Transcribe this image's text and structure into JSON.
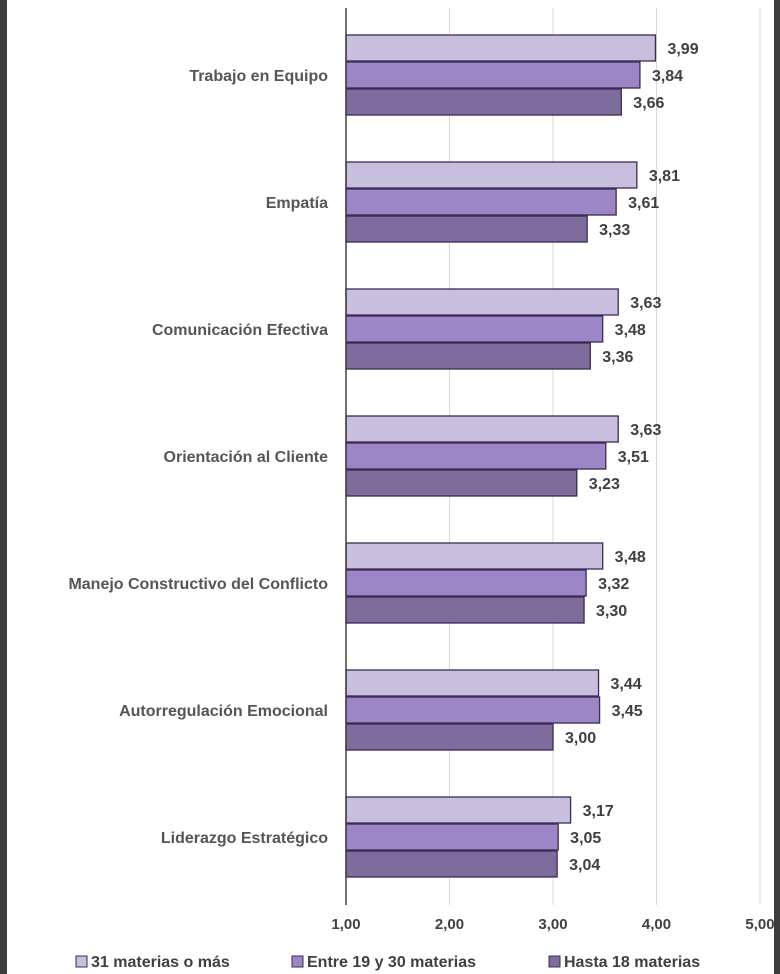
{
  "chart_data": {
    "type": "bar",
    "orientation": "horizontal",
    "categories": [
      "Trabajo en Equipo",
      "Empatía",
      "Comunicación Efectiva",
      "Orientación al Cliente",
      "Manejo Constructivo del Conflicto",
      "Autorregulación Emocional",
      "Liderazgo Estratégico"
    ],
    "series": [
      {
        "name": "31 materias o más",
        "color": "#c8bedd",
        "values": [
          3.99,
          3.81,
          3.63,
          3.63,
          3.48,
          3.44,
          3.17
        ],
        "labels": [
          "3,99",
          "3,81",
          "3,63",
          "3,63",
          "3,48",
          "3,44",
          "3,17"
        ]
      },
      {
        "name": "Entre 19 y 30 materias",
        "color": "#9d86c5",
        "values": [
          3.84,
          3.61,
          3.48,
          3.51,
          3.32,
          3.45,
          3.05
        ],
        "labels": [
          "3,84",
          "3,61",
          "3,48",
          "3,51",
          "3,32",
          "3,45",
          "3,05"
        ]
      },
      {
        "name": "Hasta 18 materias",
        "color": "#7e6c9d",
        "values": [
          3.66,
          3.33,
          3.36,
          3.23,
          3.3,
          3.0,
          3.04
        ],
        "labels": [
          "3,66",
          "3,33",
          "3,36",
          "3,23",
          "3,30",
          "3,00",
          "3,04"
        ]
      }
    ],
    "xlim": [
      1,
      5
    ],
    "ticks": [
      1,
      2,
      3,
      4,
      5
    ],
    "tick_labels": [
      "1,00",
      "2,00",
      "3,00",
      "4,00",
      "5,00"
    ],
    "grid": true,
    "legend_position": "bottom"
  }
}
